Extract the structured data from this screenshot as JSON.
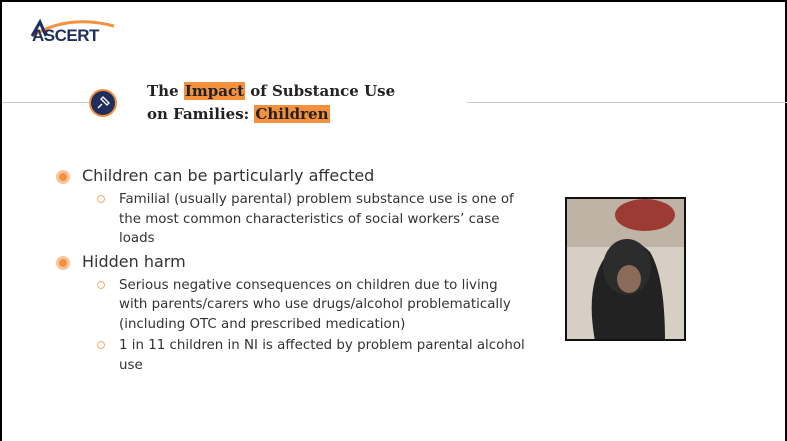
{
  "logo": "ASCERT",
  "title": {
    "parts": [
      "The",
      "Impact",
      "of Substance Use",
      "on Families:",
      "Children"
    ]
  },
  "bullets": [
    {
      "text": "Children can be particularly affected",
      "sub": [
        "Familial (usually parental) problem substance use is one of the most common characteristics of social workers’ case loads"
      ]
    },
    {
      "text": "Hidden harm",
      "sub": [
        "Serious negative consequences on children due to living with parents/carers who use drugs/alcohol problematically (including OTC and prescribed medication)",
        "1 in 11 children in NI is affected by problem parental alcohol use"
      ]
    }
  ]
}
